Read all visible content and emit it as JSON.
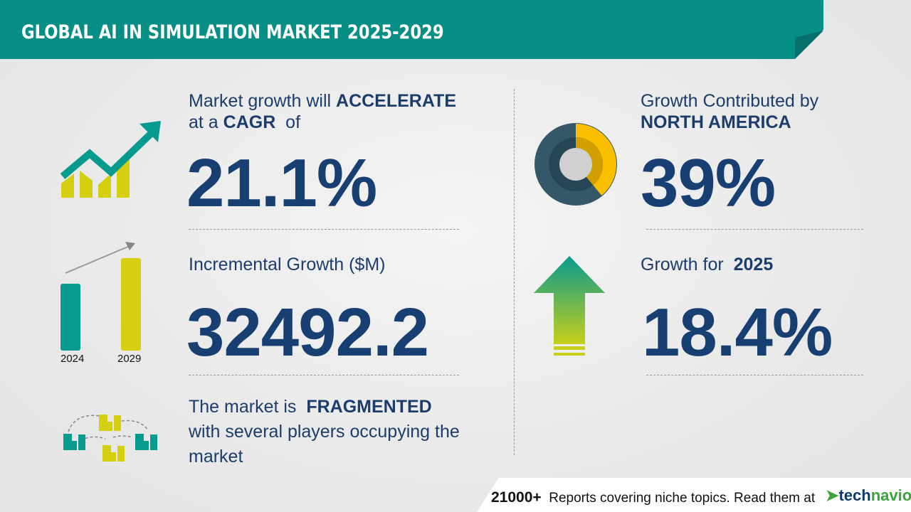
{
  "header": {
    "title": "GLOBAL AI IN SIMULATION MARKET 2025-2029"
  },
  "cagr": {
    "line1_prefix": "Market growth will",
    "line1_bold": "ACCELERATE",
    "line2_prefix": "at a",
    "line2_bold": "CAGR",
    "line2_suffix": "of",
    "value": "21.1%"
  },
  "incremental": {
    "label": "Incremental Growth ($M)",
    "value": "32492.2",
    "bar_years": [
      "2024",
      "2029"
    ]
  },
  "fragmented": {
    "prefix": "The market is",
    "bold": "FRAGMENTED",
    "line2": "with several players occupying the",
    "line3": "market"
  },
  "region": {
    "label": "Growth Contributed by",
    "bold": "NORTH AMERICA",
    "value": "39%",
    "share_percent": 39
  },
  "growth_year": {
    "label": "Growth for",
    "year": "2025",
    "value": "18.4%"
  },
  "footer": {
    "count": "21000+",
    "text": "Reports covering niche topics. Read them at",
    "logo_tech": "tech",
    "logo_navio": "navio"
  },
  "colors": {
    "teal": "#078f86",
    "navy": "#183f72",
    "yellow": "#d4d010",
    "donut_yellow": "#fbbf00",
    "donut_slate": "#34586a"
  }
}
